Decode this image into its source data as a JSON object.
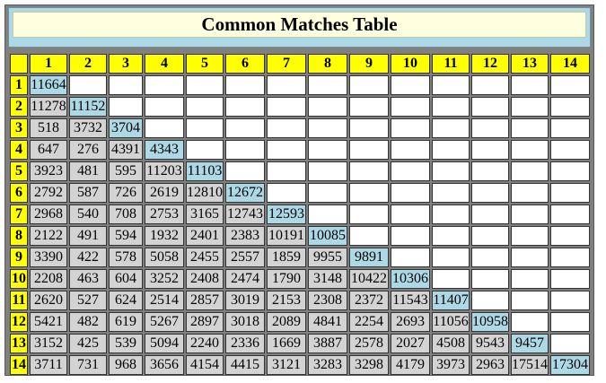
{
  "title": "Common Matches Table",
  "columns": [
    "1",
    "2",
    "3",
    "4",
    "5",
    "6",
    "7",
    "8",
    "9",
    "10",
    "11",
    "12",
    "13",
    "14"
  ],
  "rows": [
    {
      "label": "1",
      "values": [
        "11664"
      ]
    },
    {
      "label": "2",
      "values": [
        "11278",
        "11152"
      ]
    },
    {
      "label": "3",
      "values": [
        "518",
        "3732",
        "3704"
      ]
    },
    {
      "label": "4",
      "values": [
        "647",
        "276",
        "4391",
        "4343"
      ]
    },
    {
      "label": "5",
      "values": [
        "3923",
        "481",
        "595",
        "11203",
        "11103"
      ]
    },
    {
      "label": "6",
      "values": [
        "2792",
        "587",
        "726",
        "2619",
        "12810",
        "12672"
      ]
    },
    {
      "label": "7",
      "values": [
        "2968",
        "540",
        "708",
        "2753",
        "3165",
        "12743",
        "12593"
      ]
    },
    {
      "label": "8",
      "values": [
        "2122",
        "491",
        "594",
        "1932",
        "2401",
        "2383",
        "10191",
        "10085"
      ]
    },
    {
      "label": "9",
      "values": [
        "3390",
        "422",
        "578",
        "5058",
        "2455",
        "2557",
        "1859",
        "9955",
        "9891"
      ]
    },
    {
      "label": "10",
      "values": [
        "2208",
        "463",
        "604",
        "3252",
        "2408",
        "2474",
        "1790",
        "3148",
        "10422",
        "10306"
      ]
    },
    {
      "label": "11",
      "values": [
        "2620",
        "527",
        "624",
        "2514",
        "2857",
        "3019",
        "2153",
        "2308",
        "2372",
        "11543",
        "11407"
      ]
    },
    {
      "label": "12",
      "values": [
        "5421",
        "482",
        "619",
        "5267",
        "2897",
        "3018",
        "2089",
        "4841",
        "2254",
        "2693",
        "11056",
        "10958"
      ]
    },
    {
      "label": "13",
      "values": [
        "3152",
        "425",
        "539",
        "5094",
        "2240",
        "2336",
        "1669",
        "3887",
        "2578",
        "2027",
        "4508",
        "9543",
        "9457"
      ]
    },
    {
      "label": "14",
      "values": [
        "3711",
        "731",
        "968",
        "3656",
        "4154",
        "4415",
        "3121",
        "3283",
        "3298",
        "4179",
        "3973",
        "2963",
        "17514",
        "17304"
      ]
    }
  ],
  "colors": {
    "frame": "#808080",
    "title_bar": "#add8e6",
    "title_inner": "#ffffe0",
    "header": "#ffff00",
    "cell": "#d3d3d3",
    "diagonal": "#add8e6",
    "empty": "#ffffff"
  }
}
